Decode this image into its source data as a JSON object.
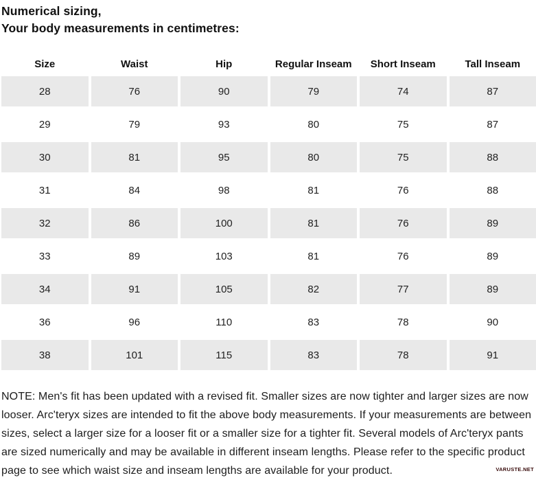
{
  "page": {
    "title_line1": "Numerical sizing,",
    "title_line2": "Your body measurements in centimetres:"
  },
  "table": {
    "headers": [
      "Size",
      "Waist",
      "Hip",
      "Regular Inseam",
      "Short Inseam",
      "Tall Inseam"
    ],
    "rows": [
      [
        "28",
        "76",
        "90",
        "79",
        "74",
        "87"
      ],
      [
        "29",
        "79",
        "93",
        "80",
        "75",
        "87"
      ],
      [
        "30",
        "81",
        "95",
        "80",
        "75",
        "88"
      ],
      [
        "31",
        "84",
        "98",
        "81",
        "76",
        "88"
      ],
      [
        "32",
        "86",
        "100",
        "81",
        "76",
        "89"
      ],
      [
        "33",
        "89",
        "103",
        "81",
        "76",
        "89"
      ],
      [
        "34",
        "91",
        "105",
        "82",
        "77",
        "89"
      ],
      [
        "36",
        "96",
        "110",
        "83",
        "78",
        "90"
      ],
      [
        "38",
        "101",
        "115",
        "83",
        "78",
        "91"
      ]
    ]
  },
  "note": "NOTE: Men's fit has been updated with a revised fit. Smaller sizes are now tighter and larger sizes are now looser. Arc'teryx sizes are intended to fit the above body measurements. If your measurements are between sizes, select a larger size for a looser fit or a smaller size for a tighter fit. Several models of Arc'teryx pants are sized numerically and may be available in different inseam lengths. Please refer to the specific product page to see which waist size and inseam lengths are available for your product.",
  "watermark": "VARUSTE.NET",
  "colors": {
    "row_shade": "#e9e9e9",
    "text": "#1c1c1c",
    "watermark": "#3a0d0d"
  }
}
